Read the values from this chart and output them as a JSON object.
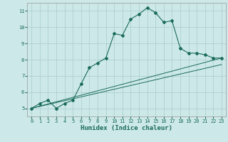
{
  "title": "",
  "xlabel": "Humidex (Indice chaleur)",
  "ylabel": "",
  "xlim": [
    -0.5,
    23.5
  ],
  "ylim": [
    4.5,
    11.5
  ],
  "xticks": [
    0,
    1,
    2,
    3,
    4,
    5,
    6,
    7,
    8,
    9,
    10,
    11,
    12,
    13,
    14,
    15,
    16,
    17,
    18,
    19,
    20,
    21,
    22,
    23
  ],
  "yticks": [
    5,
    6,
    7,
    8,
    9,
    10,
    11
  ],
  "bg_color": "#cce8e8",
  "line_color": "#1a6b5a",
  "grid_color": "#aacccc",
  "line1_x": [
    0,
    1,
    2,
    3,
    4,
    5,
    6,
    7,
    8,
    9,
    10,
    11,
    12,
    13,
    14,
    15,
    16,
    17,
    18,
    19,
    20,
    21,
    22,
    23
  ],
  "line1_y": [
    5.0,
    5.3,
    5.5,
    5.0,
    5.3,
    5.5,
    6.5,
    7.5,
    7.8,
    8.1,
    9.6,
    9.5,
    10.5,
    10.8,
    11.2,
    10.9,
    10.3,
    10.4,
    8.7,
    8.4,
    8.4,
    8.3,
    8.1,
    8.1
  ],
  "line2_x": [
    0,
    23
  ],
  "line2_y": [
    5.0,
    8.1
  ],
  "line3_x": [
    0,
    23
  ],
  "line3_y": [
    5.0,
    7.7
  ]
}
